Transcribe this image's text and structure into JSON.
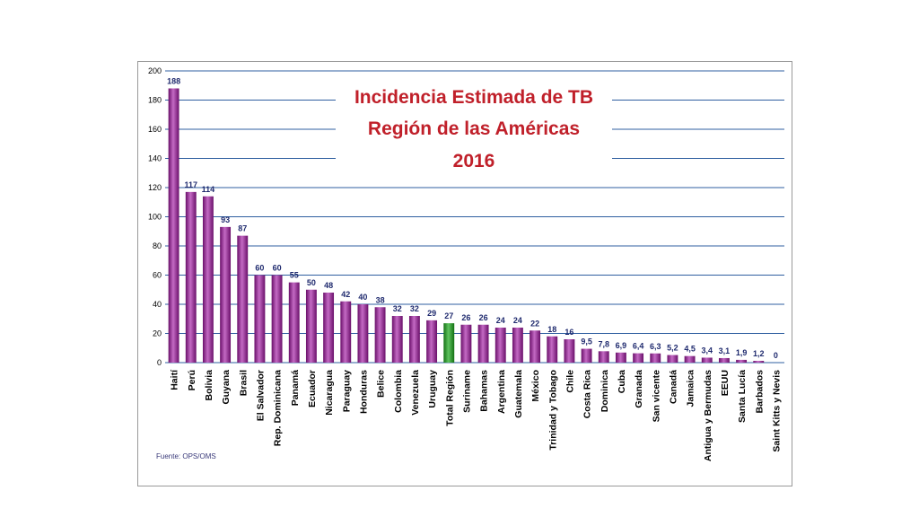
{
  "chart_data": {
    "type": "bar",
    "title_lines": [
      "Incidencia Estimada de TB",
      "Región de las Américas",
      "2016"
    ],
    "source": "Fuente: OPS/OMS",
    "ylim": [
      0,
      200
    ],
    "yticks": [
      0,
      20,
      40,
      60,
      80,
      100,
      120,
      140,
      160,
      180,
      200
    ],
    "grid": true,
    "categories": [
      "Haití",
      "Perú",
      "Bolivia",
      "Guyana",
      "Brasil",
      "El Salvador",
      "Rep. Dominicana",
      "Panamá",
      "Ecuador",
      "Nicaragua",
      "Paraguay",
      "Honduras",
      "Belice",
      "Colombia",
      "Venezuela",
      "Uruguay",
      "Total Región",
      "Suriname",
      "Bahamas",
      "Argentina",
      "Guatemala",
      "México",
      "Trinidad y Tobago",
      "Chile",
      "Costa Rica",
      "Dominica",
      "Cuba",
      "Granada",
      "San vicente",
      "Canadá",
      "Jamaica",
      "Antigua y Bermudas",
      "EEUU",
      "Santa Lucía",
      "Barbados",
      "Saint Kitts y Nevis"
    ],
    "values": [
      188,
      117,
      114,
      93,
      87,
      60,
      60,
      55,
      50,
      48,
      42,
      40,
      38,
      32,
      32,
      29,
      27,
      26,
      26,
      24,
      24,
      22,
      18,
      16,
      9.5,
      7.8,
      6.9,
      6.4,
      6.3,
      5.2,
      4.5,
      3.4,
      3.1,
      1.9,
      1.2,
      0
    ],
    "value_labels": [
      "188",
      "117",
      "114",
      "93",
      "87",
      "60",
      "60",
      "55",
      "50",
      "48",
      "42",
      "40",
      "38",
      "32",
      "32",
      "29",
      "27",
      "26",
      "26",
      "24",
      "24",
      "22",
      "18",
      "16",
      "9,5",
      "7,8",
      "6,9",
      "6,4",
      "6,3",
      "5,2",
      "4,5",
      "3,4",
      "3,1",
      "1,9",
      "1,2",
      "0"
    ],
    "highlight": "Total Región",
    "colors": {
      "bar": "#8b1a8b",
      "bar_light": "#c46ac4",
      "highlight": "#1e8a1e",
      "highlight_light": "#5fc45f",
      "value_label": "#1f2a6e",
      "category_label": "#000000",
      "grid": "#2f5fa0",
      "title": "#c0202a"
    }
  }
}
